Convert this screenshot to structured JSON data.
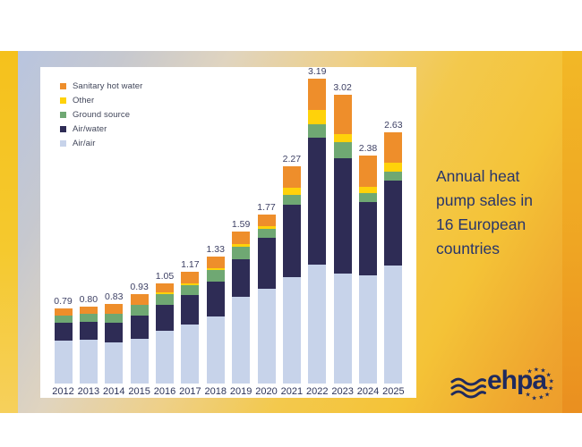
{
  "caption": {
    "lines": [
      "Annual heat",
      "pump sales in",
      "16 European",
      "countries"
    ]
  },
  "legend": {
    "items": [
      {
        "key": "sanitary_hot_water",
        "label": "Sanitary hot water"
      },
      {
        "key": "other",
        "label": "Other"
      },
      {
        "key": "ground_source",
        "label": "Ground source"
      },
      {
        "key": "air_water",
        "label": "Air/water"
      },
      {
        "key": "air_air",
        "label": "Air/air"
      }
    ]
  },
  "chart_data": {
    "type": "bar",
    "stacked": true,
    "categories": [
      "2012",
      "2013",
      "2014",
      "2015",
      "2016",
      "2017",
      "2018",
      "2019",
      "2020",
      "2021",
      "2022",
      "2023",
      "2024",
      "2025"
    ],
    "totals": [
      "0.79",
      "0.80",
      "0.83",
      "0.93",
      "1.05",
      "1.17",
      "1.33",
      "1.59",
      "1.77",
      "2.27",
      "3.19",
      "3.02",
      "2.38",
      "2.63"
    ],
    "stack_order": [
      "air_air",
      "air_water",
      "ground_source",
      "other",
      "sanitary_hot_water"
    ],
    "series": [
      {
        "key": "air_air",
        "name": "Air/air",
        "values": [
          0.45,
          0.46,
          0.43,
          0.47,
          0.55,
          0.62,
          0.7,
          0.91,
          0.99,
          1.11,
          1.24,
          1.15,
          1.13,
          1.23
        ]
      },
      {
        "key": "air_water",
        "name": "Air/water",
        "values": [
          0.19,
          0.19,
          0.21,
          0.24,
          0.27,
          0.31,
          0.37,
          0.39,
          0.53,
          0.76,
          1.33,
          1.21,
          0.77,
          0.89
        ]
      },
      {
        "key": "ground_source",
        "name": "Ground source",
        "values": [
          0.07,
          0.08,
          0.09,
          0.11,
          0.11,
          0.1,
          0.12,
          0.13,
          0.1,
          0.1,
          0.14,
          0.16,
          0.09,
          0.1
        ]
      },
      {
        "key": "other",
        "name": "Other",
        "values": [
          0.0,
          0.0,
          0.0,
          0.0,
          0.02,
          0.02,
          0.02,
          0.03,
          0.03,
          0.08,
          0.15,
          0.09,
          0.07,
          0.09
        ]
      },
      {
        "key": "sanitary_hot_water",
        "name": "Sanitary hot water",
        "values": [
          0.08,
          0.07,
          0.1,
          0.11,
          0.1,
          0.12,
          0.12,
          0.13,
          0.12,
          0.22,
          0.33,
          0.41,
          0.32,
          0.32
        ]
      }
    ],
    "colors": {
      "sanitary_hot_water": "#ee8e2b",
      "other": "#ffd20a",
      "ground_source": "#6fa873",
      "air_water": "#2e2c55",
      "air_air": "#c7d3ea"
    },
    "ylim": [
      0,
      3.4
    ],
    "grid": false,
    "legend_position": "top-left"
  },
  "logo": {
    "text": "ehpa"
  },
  "accent_colors": {
    "left_strip": "#f5c11c",
    "right_strip": "#efa523",
    "caption_text": "#28356b",
    "logo_navy": "#1f2a5e"
  }
}
